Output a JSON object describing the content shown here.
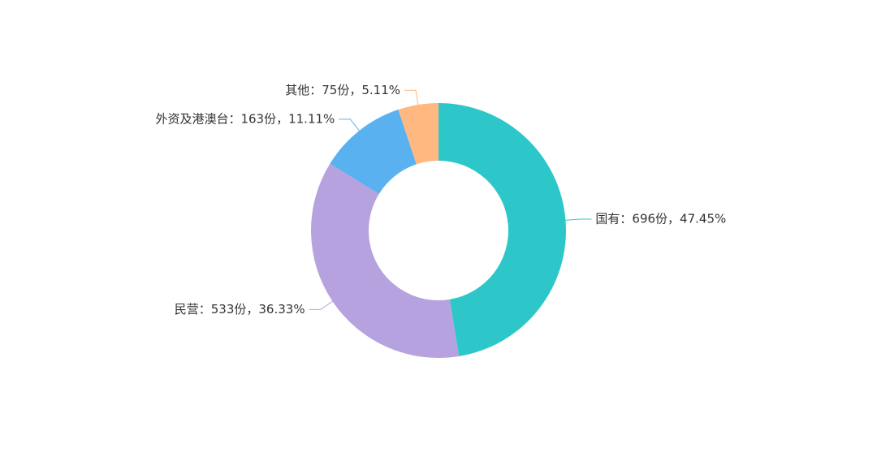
{
  "chart_data": {
    "type": "donut",
    "values": [
      696,
      533,
      163,
      75
    ],
    "value_labels": [
      "国有：696份，47.45%",
      "民营：533份，36.33%",
      "外资及港澳台：163份，11.11%",
      "其他：75份，5.11%"
    ],
    "colors": [
      "#2ec7c9",
      "#b6a2de",
      "#5ab1ef",
      "#ffb980"
    ]
  }
}
